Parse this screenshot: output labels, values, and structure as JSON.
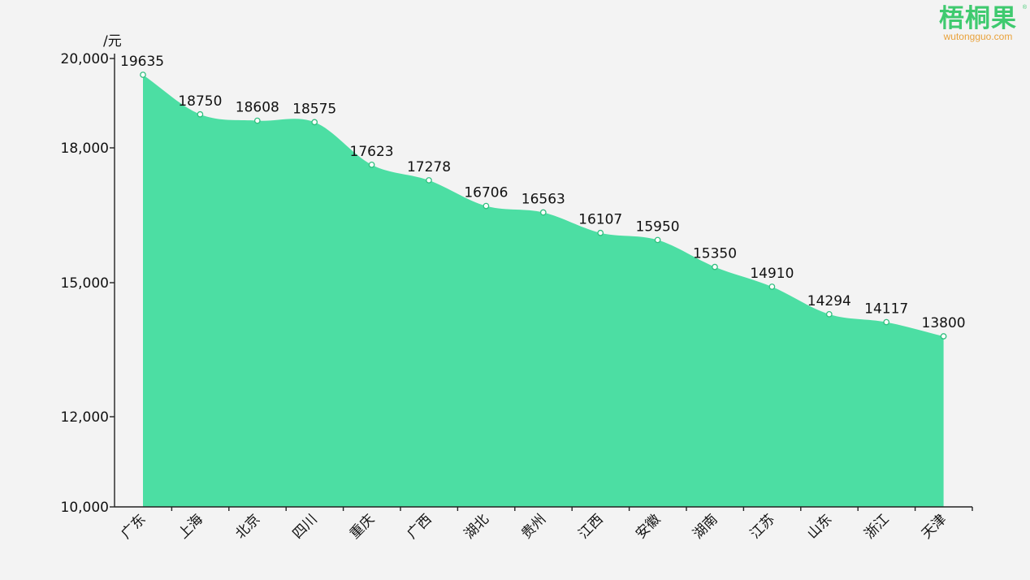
{
  "colors": {
    "fill": "#4cdea3",
    "point_stroke": "#2fbf7e",
    "axis": "#222222",
    "logo": "#3fca6f",
    "logo_sub": "#e9a23b"
  },
  "logo": {
    "name": "梧桐果",
    "domain": "wutongguo.com",
    "registered_mark": "®"
  },
  "chart_data": {
    "type": "area",
    "ylabel": "/元",
    "ylim": [
      10000,
      20000
    ],
    "yticks": [
      10000,
      12000,
      15000,
      18000,
      20000
    ],
    "ytick_labels": [
      "10,000",
      "12,000",
      "15,000",
      "18,000",
      "20,000"
    ],
    "categories": [
      "广东",
      "上海",
      "北京",
      "四川",
      "重庆",
      "广西",
      "湖北",
      "贵州",
      "江西",
      "安徽",
      "湖南",
      "江苏",
      "山东",
      "浙江",
      "天津"
    ],
    "values": [
      19635,
      18750,
      18608,
      18575,
      17623,
      17278,
      16706,
      16563,
      16107,
      15950,
      15350,
      14910,
      14294,
      14117,
      13800
    ],
    "data_labels": [
      "19635",
      "18750",
      "18608",
      "18575",
      "17623",
      "17278",
      "16706",
      "16563",
      "16107",
      "15950",
      "15350",
      "14910",
      "14294",
      "14117",
      "13800"
    ],
    "grid": false,
    "smooth": true
  }
}
